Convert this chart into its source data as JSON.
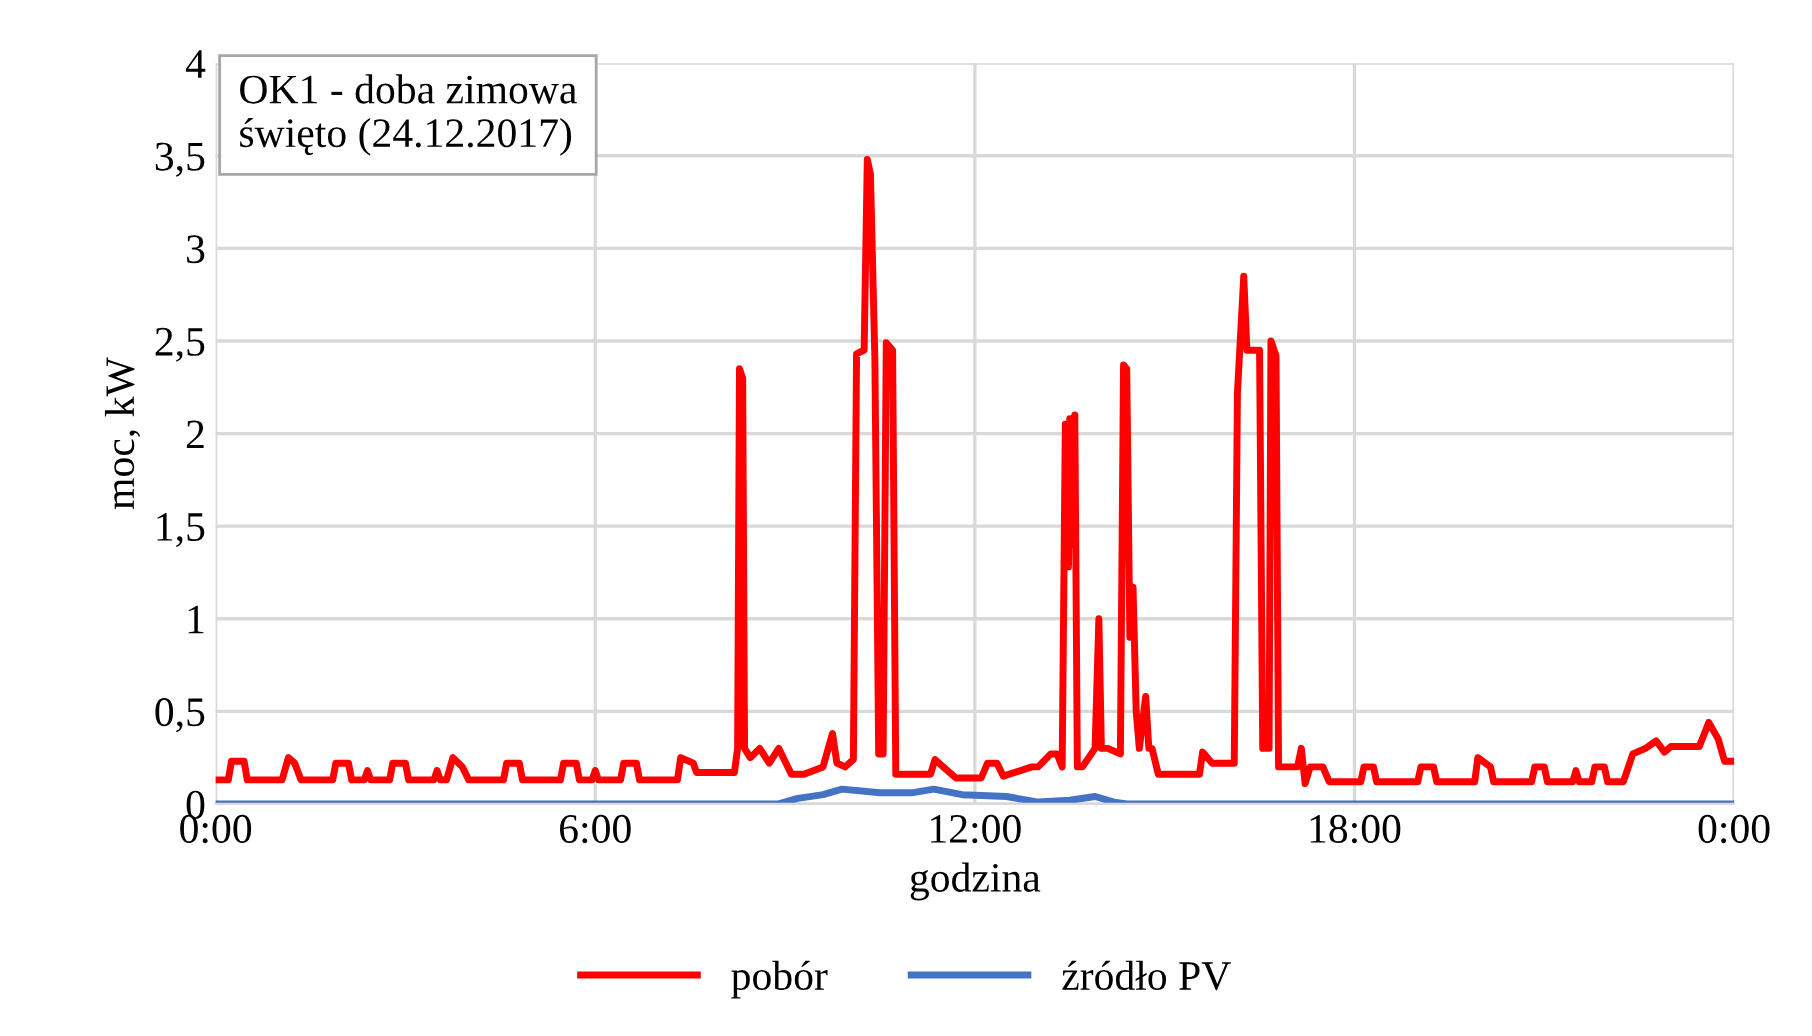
{
  "chart_data": {
    "type": "line",
    "xlabel": "godzina",
    "ylabel": "moc, kW",
    "annotations": [
      "OK1 - doba zimowa\nświęto (24.12.2017)"
    ],
    "xlim": [
      0,
      24
    ],
    "xticks": [
      {
        "value": 0,
        "label": "0:00"
      },
      {
        "value": 6,
        "label": "6:00"
      },
      {
        "value": 12,
        "label": "12:00"
      },
      {
        "value": 18,
        "label": "18:00"
      },
      {
        "value": 24,
        "label": "0:00"
      }
    ],
    "ylim": [
      0,
      4
    ],
    "yticks": [
      0,
      {
        "value": 0.5,
        "label": "0,5"
      },
      1,
      {
        "value": 1.5,
        "label": "1,5"
      },
      2,
      {
        "value": 2.5,
        "label": "2,5"
      },
      3,
      {
        "value": 3.5,
        "label": "3,5"
      },
      4
    ],
    "grid": true,
    "legend": "bottom",
    "marker": "none",
    "line_style": "solid",
    "series": [
      {
        "name": "pobór",
        "color": "#ff0000",
        "x": [
          0,
          0.2,
          0.25,
          0.45,
          0.5,
          1.05,
          1.15,
          1.25,
          1.35,
          1.85,
          1.9,
          2.1,
          2.15,
          2.35,
          2.4,
          2.45,
          2.75,
          2.8,
          3.0,
          3.05,
          3.45,
          3.5,
          3.55,
          3.65,
          3.75,
          3.9,
          4.0,
          4.55,
          4.6,
          4.8,
          4.85,
          5.45,
          5.5,
          5.7,
          5.75,
          5.95,
          6.0,
          6.05,
          6.4,
          6.45,
          6.65,
          6.7,
          7.3,
          7.35,
          7.55,
          7.6,
          8.2,
          8.25,
          8.28,
          8.33,
          8.36,
          8.45,
          8.6,
          8.75,
          8.9,
          9.1,
          9.3,
          9.6,
          9.75,
          9.82,
          9.95,
          10.08,
          10.13,
          10.25,
          10.3,
          10.35,
          10.42,
          10.48,
          10.55,
          10.6,
          10.7,
          10.75,
          10.85,
          11.3,
          11.37,
          11.5,
          11.7,
          12.1,
          12.2,
          12.35,
          12.45,
          12.9,
          13.0,
          13.2,
          13.3,
          13.38,
          13.43,
          13.48,
          13.5,
          13.55,
          13.58,
          13.62,
          13.66,
          13.7,
          13.9,
          13.96,
          14.0,
          14.1,
          14.3,
          14.35,
          14.4,
          14.45,
          14.5,
          14.55,
          14.6,
          14.7,
          14.75,
          14.8,
          14.9,
          15.0,
          15.55,
          15.6,
          15.75,
          16.1,
          16.15,
          16.25,
          16.3,
          16.5,
          16.55,
          16.65,
          16.68,
          16.76,
          16.8,
          17.1,
          17.16,
          17.22,
          17.3,
          17.5,
          17.6,
          18.1,
          18.15,
          18.3,
          18.35,
          19.0,
          19.05,
          19.25,
          19.3,
          19.9,
          19.95,
          20.15,
          20.2,
          20.8,
          20.85,
          21.0,
          21.05,
          21.45,
          21.5,
          21.55,
          21.75,
          21.8,
          21.95,
          22.0,
          22.25,
          22.4,
          22.6,
          22.77,
          22.9,
          23.0,
          23.45,
          23.6,
          23.75,
          23.85,
          24.0
        ],
        "values": [
          0.13,
          0.13,
          0.23,
          0.23,
          0.13,
          0.13,
          0.25,
          0.22,
          0.13,
          0.13,
          0.22,
          0.22,
          0.13,
          0.13,
          0.18,
          0.13,
          0.13,
          0.22,
          0.22,
          0.13,
          0.13,
          0.18,
          0.13,
          0.13,
          0.25,
          0.2,
          0.13,
          0.13,
          0.22,
          0.22,
          0.13,
          0.13,
          0.22,
          0.22,
          0.13,
          0.13,
          0.18,
          0.13,
          0.13,
          0.22,
          0.22,
          0.13,
          0.13,
          0.25,
          0.22,
          0.17,
          0.17,
          0.3,
          2.35,
          2.3,
          0.3,
          0.25,
          0.3,
          0.22,
          0.3,
          0.16,
          0.16,
          0.2,
          0.38,
          0.22,
          0.2,
          0.24,
          2.43,
          2.45,
          3.48,
          3.4,
          2.4,
          0.27,
          0.27,
          2.49,
          2.45,
          0.16,
          0.16,
          0.16,
          0.24,
          0.2,
          0.14,
          0.14,
          0.22,
          0.22,
          0.15,
          0.2,
          0.2,
          0.27,
          0.27,
          0.2,
          2.05,
          1.28,
          2.08,
          1.4,
          2.1,
          0.2,
          0.2,
          0.2,
          0.3,
          1.0,
          0.3,
          0.3,
          0.27,
          2.37,
          2.35,
          0.9,
          1.17,
          0.5,
          0.3,
          0.58,
          0.3,
          0.3,
          0.16,
          0.16,
          0.16,
          0.28,
          0.22,
          0.22,
          2.22,
          2.85,
          2.45,
          2.45,
          0.3,
          0.3,
          2.5,
          2.42,
          0.2,
          0.2,
          0.3,
          0.11,
          0.2,
          0.2,
          0.12,
          0.12,
          0.2,
          0.2,
          0.12,
          0.12,
          0.2,
          0.2,
          0.12,
          0.12,
          0.25,
          0.2,
          0.12,
          0.12,
          0.2,
          0.2,
          0.12,
          0.12,
          0.18,
          0.12,
          0.12,
          0.2,
          0.2,
          0.12,
          0.12,
          0.27,
          0.3,
          0.34,
          0.28,
          0.31,
          0.31,
          0.44,
          0.35,
          0.23,
          0.23
        ]
      },
      {
        "name": "źródło PV",
        "color": "#4472c4",
        "x": [
          0,
          8.9,
          9.2,
          9.6,
          9.9,
          10.5,
          11.0,
          11.35,
          11.8,
          12.5,
          13.0,
          13.5,
          13.9,
          14.2,
          14.4,
          24
        ],
        "values": [
          0,
          0,
          0.03,
          0.05,
          0.08,
          0.06,
          0.06,
          0.08,
          0.05,
          0.04,
          0.01,
          0.02,
          0.04,
          0.01,
          0,
          0
        ]
      }
    ]
  }
}
